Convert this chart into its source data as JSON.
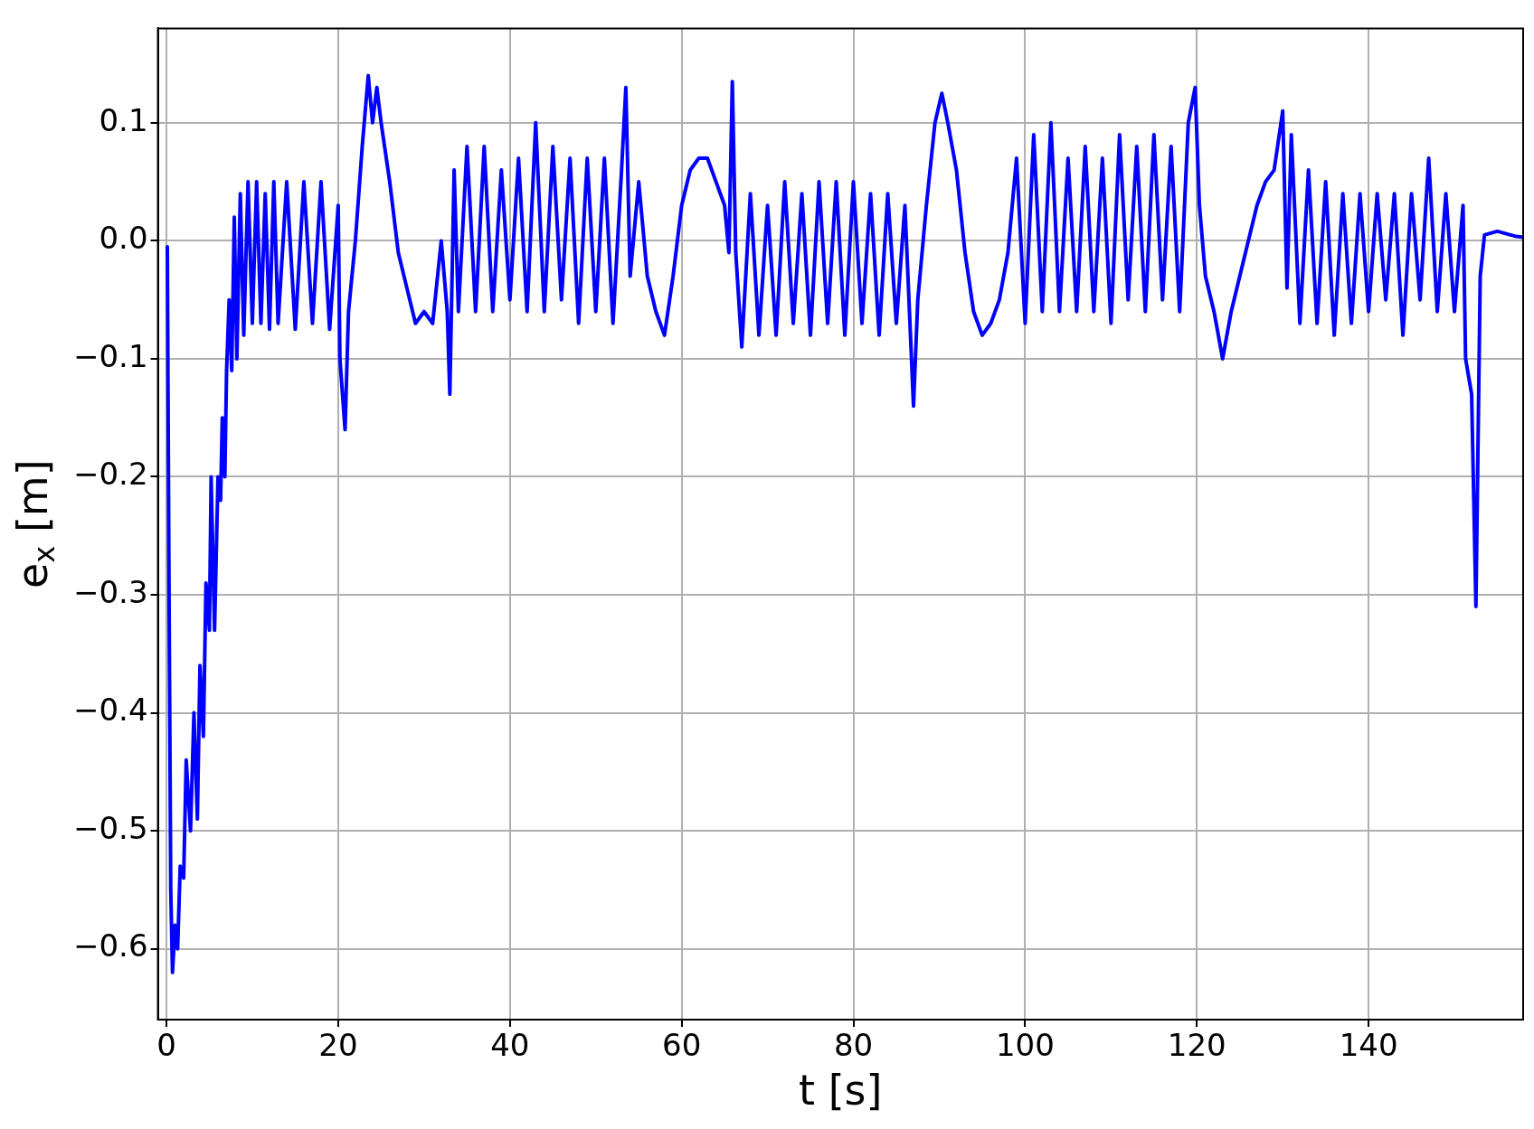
{
  "chart_data": {
    "type": "line",
    "xlabel": "t [s]",
    "ylabel": "e$_{x}$ [m]",
    "xlim": [
      -1,
      158
    ],
    "ylim": [
      -0.66,
      0.18
    ],
    "xticks": [
      0,
      20,
      40,
      60,
      80,
      100,
      120,
      140
    ],
    "yticks": [
      {
        "value": -0.6,
        "label": "−0.6"
      },
      {
        "value": -0.5,
        "label": "−0.5"
      },
      {
        "value": -0.4,
        "label": "−0.4"
      },
      {
        "value": -0.3,
        "label": "−0.3"
      },
      {
        "value": -0.2,
        "label": "−0.2"
      },
      {
        "value": -0.1,
        "label": "−0.1"
      },
      {
        "value": 0,
        "label": "0.0"
      },
      {
        "value": 0.1,
        "label": "0.1"
      }
    ],
    "grid": true,
    "legend": false,
    "marker": "none",
    "line_style": "solid",
    "series": [
      {
        "color": "#0000ff",
        "x": [
          0.1,
          0.3,
          0.5,
          0.7,
          1.0,
          1.3,
          1.6,
          2.0,
          2.3,
          2.8,
          3.2,
          3.6,
          3.9,
          4.3,
          4.6,
          5.0,
          5.2,
          5.6,
          6.0,
          6.3,
          6.5,
          6.8,
          7.0,
          7.3,
          7.6,
          7.9,
          8.2,
          8.6,
          9.0,
          9.5,
          10,
          10.5,
          11,
          11.5,
          12,
          12.5,
          13,
          14,
          15,
          16,
          17,
          18,
          19,
          20,
          20.2,
          20.8,
          21.2,
          22,
          22.8,
          23.5,
          24,
          24.5,
          25,
          26,
          27,
          28,
          29,
          30,
          31,
          32,
          32.7,
          33,
          33.5,
          34,
          35,
          36,
          37,
          38,
          39,
          40,
          41,
          42,
          43,
          44,
          45,
          46,
          47,
          48,
          49,
          50,
          51,
          52,
          53,
          53.5,
          54,
          55,
          56,
          57,
          58,
          59,
          60,
          61,
          62,
          63,
          64,
          65,
          65.5,
          65.9,
          66.3,
          67,
          68,
          69,
          70,
          71,
          72,
          73,
          74,
          75,
          76,
          77,
          78,
          79,
          80,
          81,
          82,
          83,
          84,
          85,
          86,
          87,
          87.5,
          88.5,
          89.5,
          90.3,
          91,
          92,
          93,
          94,
          95,
          96,
          97,
          98,
          99,
          100,
          101,
          102,
          103,
          104,
          105,
          106,
          107,
          108,
          109,
          110,
          111,
          112,
          113,
          114,
          115,
          116,
          117,
          118,
          119,
          119.8,
          120.3,
          121,
          122,
          123,
          124,
          125,
          126,
          127,
          128,
          129,
          130,
          130.5,
          131,
          132,
          133,
          134,
          135,
          136,
          137,
          138,
          139,
          140,
          141,
          142,
          143,
          144,
          145,
          146,
          147,
          148,
          149,
          150,
          151,
          151.3,
          152,
          152.5,
          153,
          153.5,
          155,
          157,
          158
        ],
        "values": [
          -0.005,
          -0.3,
          -0.55,
          -0.62,
          -0.58,
          -0.6,
          -0.53,
          -0.54,
          -0.44,
          -0.5,
          -0.4,
          -0.49,
          -0.36,
          -0.42,
          -0.29,
          -0.33,
          -0.2,
          -0.33,
          -0.2,
          -0.22,
          -0.15,
          -0.2,
          -0.11,
          -0.05,
          -0.11,
          0.02,
          -0.1,
          0.04,
          -0.08,
          0.05,
          -0.07,
          0.05,
          -0.07,
          0.04,
          -0.075,
          0.05,
          -0.07,
          0.05,
          -0.075,
          0.05,
          -0.07,
          0.05,
          -0.075,
          0.03,
          -0.1,
          -0.16,
          -0.06,
          0.0,
          0.08,
          0.14,
          0.1,
          0.13,
          0.1,
          0.05,
          -0.01,
          -0.04,
          -0.07,
          -0.06,
          -0.07,
          0.0,
          -0.06,
          -0.13,
          0.06,
          -0.06,
          0.08,
          -0.06,
          0.08,
          -0.06,
          0.06,
          -0.05,
          0.07,
          -0.06,
          0.1,
          -0.06,
          0.08,
          -0.05,
          0.07,
          -0.07,
          0.07,
          -0.06,
          0.07,
          -0.07,
          0.06,
          0.13,
          -0.03,
          0.05,
          -0.03,
          -0.06,
          -0.08,
          -0.03,
          0.03,
          0.06,
          0.07,
          0.07,
          0.05,
          0.03,
          -0.01,
          0.135,
          -0.01,
          -0.09,
          0.04,
          -0.08,
          0.03,
          -0.08,
          0.05,
          -0.07,
          0.04,
          -0.08,
          0.05,
          -0.07,
          0.05,
          -0.08,
          0.05,
          -0.07,
          0.04,
          -0.08,
          0.04,
          -0.07,
          0.03,
          -0.14,
          -0.05,
          0.03,
          0.1,
          0.125,
          0.1,
          0.06,
          -0.01,
          -0.06,
          -0.08,
          -0.07,
          -0.05,
          -0.01,
          0.07,
          -0.07,
          0.09,
          -0.06,
          0.1,
          -0.06,
          0.07,
          -0.06,
          0.08,
          -0.06,
          0.07,
          -0.07,
          0.09,
          -0.05,
          0.08,
          -0.06,
          0.09,
          -0.05,
          0.08,
          -0.06,
          0.1,
          0.13,
          0.03,
          -0.03,
          -0.06,
          -0.1,
          -0.06,
          -0.03,
          0.0,
          0.03,
          0.05,
          0.06,
          0.11,
          -0.04,
          0.09,
          -0.07,
          0.06,
          -0.07,
          0.05,
          -0.08,
          0.04,
          -0.07,
          0.04,
          -0.06,
          0.04,
          -0.05,
          0.04,
          -0.08,
          0.04,
          -0.05,
          0.07,
          -0.06,
          0.04,
          -0.06,
          0.03,
          -0.1,
          -0.13,
          -0.31,
          -0.03,
          0.005,
          0.008,
          0.004,
          0.003
        ]
      }
    ]
  }
}
